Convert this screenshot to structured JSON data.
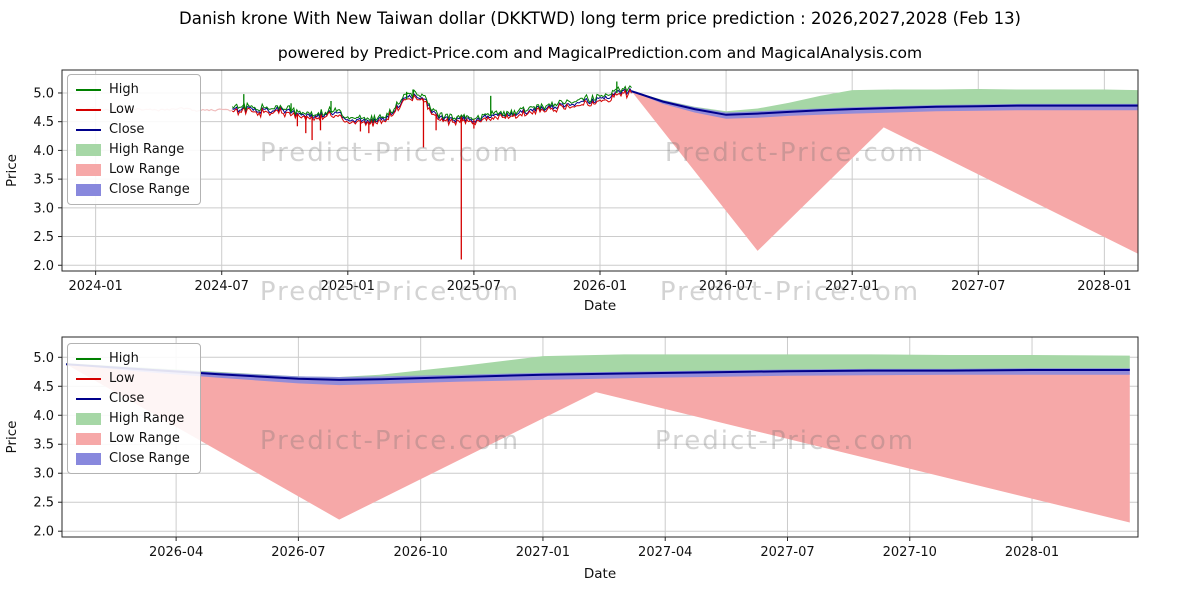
{
  "page": {
    "title": "Danish krone With New Taiwan dollar (DKKTWD) long term price prediction : 2026,2027,2028 (Feb 13)",
    "subtitle": "powered by Predict-Price.com and MagicalPrediction.com and MagicalAnalysis.com",
    "watermark_text": "Predict-Price.com"
  },
  "colors": {
    "high_line": "#008000",
    "low_line": "#d40000",
    "close_line": "#00008b",
    "high_range_fill": "#a6d7a6",
    "low_range_fill": "#f6a8a8",
    "close_range_fill": "#8888dd",
    "faded_history": "#f0bdbd",
    "grid": "#cccccc",
    "axis": "#262626",
    "text": "#111111"
  },
  "legend": {
    "entries": [
      {
        "label": "High",
        "kind": "line",
        "color_key": "high_line"
      },
      {
        "label": "Low",
        "kind": "line",
        "color_key": "low_line"
      },
      {
        "label": "Close",
        "kind": "line",
        "color_key": "close_line"
      },
      {
        "label": "High Range",
        "kind": "patch",
        "color_key": "high_range_fill"
      },
      {
        "label": "Low Range",
        "kind": "patch",
        "color_key": "low_range_fill"
      },
      {
        "label": "Close Range",
        "kind": "patch",
        "color_key": "close_range_fill"
      }
    ]
  },
  "chart_data": [
    {
      "type": "line",
      "name": "history-and-prediction",
      "title": "",
      "xlabel": "Date",
      "ylabel": "Price",
      "x_unit": "months since 2024-01",
      "xlim": [
        -1.6,
        49.6
      ],
      "ylim": [
        1.9,
        5.4
      ],
      "yticks": [
        2.0,
        2.5,
        3.0,
        3.5,
        4.0,
        4.5,
        5.0
      ],
      "xticks": [
        {
          "m": 0,
          "label": "2024-01"
        },
        {
          "m": 6,
          "label": "2024-07"
        },
        {
          "m": 12,
          "label": "2025-01"
        },
        {
          "m": 18,
          "label": "2025-07"
        },
        {
          "m": 24,
          "label": "2026-01"
        },
        {
          "m": 30,
          "label": "2026-07"
        },
        {
          "m": 36,
          "label": "2027-01"
        },
        {
          "m": 42,
          "label": "2027-07"
        },
        {
          "m": 48,
          "label": "2028-01"
        }
      ],
      "history_faded": {
        "x": [
          -1.0,
          0,
          1,
          2,
          3,
          4,
          5,
          6,
          6.5
        ],
        "y": [
          4.71,
          4.73,
          4.69,
          4.72,
          4.7,
          4.73,
          4.69,
          4.71,
          4.7
        ]
      },
      "history": {
        "x": [
          6.5,
          7,
          7.5,
          8,
          8.5,
          9,
          9.5,
          10,
          10.4,
          10.8,
          11.2,
          11.6,
          12,
          12.5,
          13,
          13.4,
          13.8,
          14.2,
          14.6,
          15,
          15.3,
          15.6,
          16,
          16.4,
          16.8,
          17.2,
          17.4,
          17.8,
          18.2,
          18.6,
          19,
          19.5,
          20,
          20.5,
          21,
          21.5,
          22,
          22.5,
          23,
          23.5,
          24,
          24.4,
          24.8,
          25.2,
          25.5
        ],
        "close": [
          4.7,
          4.73,
          4.71,
          4.69,
          4.72,
          4.7,
          4.65,
          4.6,
          4.57,
          4.62,
          4.65,
          4.62,
          4.57,
          4.53,
          4.5,
          4.52,
          4.55,
          4.7,
          4.85,
          4.93,
          4.95,
          4.9,
          4.7,
          4.58,
          4.55,
          4.53,
          4.55,
          4.52,
          4.55,
          4.58,
          4.62,
          4.6,
          4.63,
          4.68,
          4.72,
          4.74,
          4.77,
          4.8,
          4.83,
          4.86,
          4.9,
          4.95,
          5.0,
          5.02,
          5.03
        ]
      },
      "history_low_spikes": [
        [
          9.6,
          4.42
        ],
        [
          10.0,
          4.3
        ],
        [
          10.3,
          4.18
        ],
        [
          10.7,
          4.35
        ],
        [
          12.6,
          4.33
        ],
        [
          13.0,
          4.3
        ],
        [
          15.6,
          4.05
        ],
        [
          16.2,
          4.35
        ],
        [
          17.4,
          2.1
        ],
        [
          18.0,
          4.38
        ]
      ],
      "history_high_spikes": [
        [
          7.05,
          4.98
        ],
        [
          9.3,
          4.82
        ],
        [
          11.2,
          4.86
        ],
        [
          14.8,
          5.02
        ],
        [
          15.1,
          5.06
        ],
        [
          18.8,
          4.95
        ],
        [
          24.8,
          5.2
        ]
      ],
      "prediction": {
        "x": [
          25.5,
          27,
          28.5,
          30,
          31.5,
          33,
          34.5,
          36,
          38,
          40,
          42,
          44,
          46,
          48,
          49.6
        ],
        "close": [
          5.03,
          4.85,
          4.72,
          4.62,
          4.64,
          4.67,
          4.7,
          4.72,
          4.74,
          4.76,
          4.77,
          4.78,
          4.78,
          4.78,
          4.78
        ],
        "high": [
          5.03,
          4.88,
          4.76,
          4.68,
          4.73,
          4.83,
          4.95,
          5.05,
          5.06,
          5.06,
          5.07,
          5.06,
          5.06,
          5.06,
          5.05
        ],
        "close_upper": [
          5.03,
          4.87,
          4.75,
          4.66,
          4.68,
          4.71,
          4.73,
          4.75,
          4.77,
          4.79,
          4.8,
          4.81,
          4.81,
          4.81,
          4.81
        ],
        "close_lower": [
          5.03,
          4.81,
          4.66,
          4.55,
          4.57,
          4.6,
          4.62,
          4.64,
          4.66,
          4.68,
          4.69,
          4.7,
          4.7,
          4.7,
          4.7
        ],
        "low_x": [
          25.5,
          31.5,
          37.5,
          49.6
        ],
        "low": [
          5.03,
          2.25,
          4.4,
          2.2
        ]
      }
    },
    {
      "type": "line",
      "name": "prediction-detail",
      "title": "",
      "xlabel": "Date",
      "ylabel": "Price",
      "x_unit": "months since 2024-01",
      "xlim": [
        24.2,
        50.6
      ],
      "ylim": [
        1.9,
        5.35
      ],
      "yticks": [
        2.0,
        2.5,
        3.0,
        3.5,
        4.0,
        4.5,
        5.0
      ],
      "xticks": [
        {
          "m": 27,
          "label": "2026-04"
        },
        {
          "m": 30,
          "label": "2026-07"
        },
        {
          "m": 33,
          "label": "2026-10"
        },
        {
          "m": 36,
          "label": "2027-01"
        },
        {
          "m": 39,
          "label": "2027-04"
        },
        {
          "m": 42,
          "label": "2027-07"
        },
        {
          "m": 45,
          "label": "2027-10"
        },
        {
          "m": 48,
          "label": "2028-01"
        }
      ],
      "prediction": {
        "x": [
          24.3,
          26,
          28,
          30,
          31,
          32,
          34,
          36,
          38,
          40,
          42,
          44,
          46,
          48,
          50.4
        ],
        "close": [
          4.88,
          4.8,
          4.71,
          4.63,
          4.61,
          4.62,
          4.66,
          4.7,
          4.72,
          4.74,
          4.76,
          4.77,
          4.77,
          4.78,
          4.78
        ],
        "high": [
          4.9,
          4.83,
          4.75,
          4.67,
          4.66,
          4.7,
          4.85,
          5.02,
          5.05,
          5.05,
          5.05,
          5.05,
          5.04,
          5.04,
          5.03
        ],
        "close_upper": [
          4.88,
          4.82,
          4.74,
          4.67,
          4.66,
          4.67,
          4.7,
          4.73,
          4.75,
          4.77,
          4.79,
          4.8,
          4.8,
          4.81,
          4.81
        ],
        "close_lower": [
          4.88,
          4.76,
          4.65,
          4.55,
          4.52,
          4.54,
          4.58,
          4.61,
          4.64,
          4.66,
          4.68,
          4.69,
          4.7,
          4.7,
          4.7
        ],
        "low_x": [
          24.3,
          31,
          37.3,
          50.4
        ],
        "low": [
          4.88,
          2.2,
          4.4,
          2.15
        ]
      }
    }
  ]
}
